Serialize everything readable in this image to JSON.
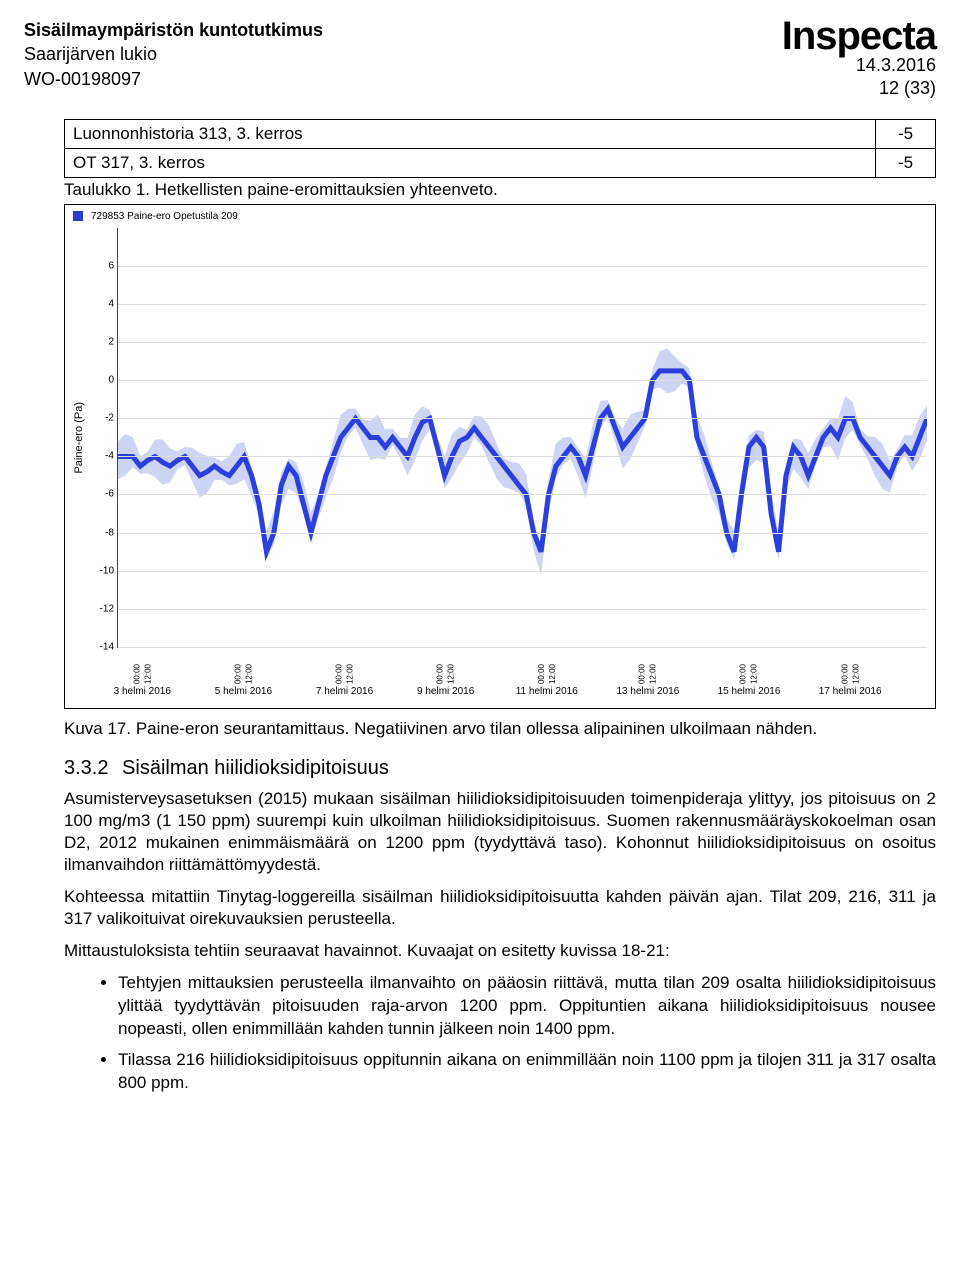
{
  "header": {
    "line1": "Sisäilmaympäristön kuntotutkimus",
    "line2": "Saarijärven lukio",
    "line3": "WO-00198097",
    "logo": "Inspecta",
    "date": "14.3.2016",
    "page": "12 (33)"
  },
  "table": {
    "rows": [
      {
        "label": "Luonnonhistoria 313, 3. kerros",
        "value": "-5"
      },
      {
        "label": "OT 317, 3. kerros",
        "value": "-5"
      }
    ]
  },
  "tableCaption": "Taulukko 1. Hetkellisten paine-eromittauksien yhteenveto.",
  "chart": {
    "legend": "729853 Paine-ero Opetustila 209",
    "ylabel": "Paine-ero (Pa)",
    "ymin": -14,
    "ymax": 8,
    "yticks": [
      6,
      4,
      2,
      0,
      -2,
      -4,
      -6,
      -8,
      -10,
      -12,
      -14
    ],
    "xticks": [
      {
        "date": "3 helmi 2016",
        "pos": 0.03
      },
      {
        "date": "5 helmi 2016",
        "pos": 0.155
      },
      {
        "date": "7 helmi 2016",
        "pos": 0.28
      },
      {
        "date": "9 helmi 2016",
        "pos": 0.405
      },
      {
        "date": "11 helmi 2016",
        "pos": 0.53
      },
      {
        "date": "13 helmi 2016",
        "pos": 0.655
      },
      {
        "date": "15 helmi 2016",
        "pos": 0.78
      },
      {
        "date": "17 helmi 2016",
        "pos": 0.905
      }
    ],
    "xtick_times": [
      "00:00",
      "12:00"
    ],
    "line_color": "#2b3fdc",
    "band_color": "#b8c2f0",
    "grid_color": "#dddddd",
    "series_y": [
      -4,
      -4,
      -4,
      -4.5,
      -4.2,
      -4,
      -4.3,
      -4.5,
      -4.2,
      -4,
      -4.5,
      -5,
      -4.8,
      -4.5,
      -4.8,
      -5,
      -4.5,
      -4,
      -5,
      -6.5,
      -9,
      -8,
      -5.5,
      -4.5,
      -5,
      -6.5,
      -8,
      -6.5,
      -5,
      -4,
      -3,
      -2.5,
      -2,
      -2.5,
      -3,
      -3,
      -3.5,
      -3,
      -3.5,
      -4,
      -3,
      -2.2,
      -2,
      -3.5,
      -5,
      -4,
      -3.2,
      -3,
      -2.5,
      -3,
      -3.5,
      -4,
      -4.5,
      -5,
      -5.5,
      -6,
      -8,
      -9,
      -6,
      -4.5,
      -4,
      -3.5,
      -4,
      -5,
      -3.5,
      -2,
      -1.5,
      -2.5,
      -3.5,
      -3,
      -2.5,
      -2,
      0,
      0.5,
      0.5,
      0.5,
      0.5,
      0,
      -3,
      -4,
      -5,
      -6,
      -8,
      -9,
      -6,
      -3.5,
      -3,
      -3.5,
      -7,
      -9,
      -5,
      -3.5,
      -4,
      -5,
      -4,
      -3,
      -2.5,
      -3,
      -2,
      -2,
      -3,
      -3.5,
      -4,
      -4.5,
      -5,
      -4,
      -3.5,
      -4,
      -3,
      -2
    ]
  },
  "figCaption": "Kuva 17. Paine-eron seurantamittaus. Negatiivinen arvo tilan ollessa alipaininen ulkoilmaan nähden.",
  "section": {
    "number": "3.3.2",
    "title": "Sisäilman hiilidioksidipitoisuus"
  },
  "paragraphs": [
    "Asumisterveysasetuksen (2015) mukaan sisäilman hiilidioksidipitoisuuden toimenpideraja ylittyy, jos pitoisuus on 2 100 mg/m3 (1 150 ppm) suurempi kuin ulkoilman hiilidioksidipitoisuus. Suomen rakennusmääräyskokoelman osan D2, 2012 mukainen enimmäismäärä on 1200 ppm (tyydyttävä taso). Kohonnut hiilidioksidipitoisuus on osoitus ilmanvaihdon riittämättömyydestä.",
    "Kohteessa mitattiin Tinytag-loggereilla sisäilman hiilidioksidipitoisuutta kahden päivän ajan. Tilat 209, 216, 311 ja 317 valikoituivat oirekuvauksien perusteella.",
    "Mittaustuloksista tehtiin seuraavat havainnot. Kuvaajat on esitetty kuvissa 18-21:"
  ],
  "bullets": [
    "Tehtyjen mittauksien perusteella ilmanvaihto on pääosin riittävä, mutta tilan 209 osalta hiilidioksidipitoisuus ylittää tyydyttävän pitoisuuden raja-arvon 1200 ppm. Oppituntien aikana hiilidioksidipitoisuus nousee nopeasti, ollen enimmillään kahden tunnin jälkeen noin 1400 ppm.",
    "Tilassa 216 hiilidioksidipitoisuus oppitunnin aikana on enimmillään noin 1100 ppm ja tilojen 311 ja 317 osalta 800 ppm."
  ]
}
